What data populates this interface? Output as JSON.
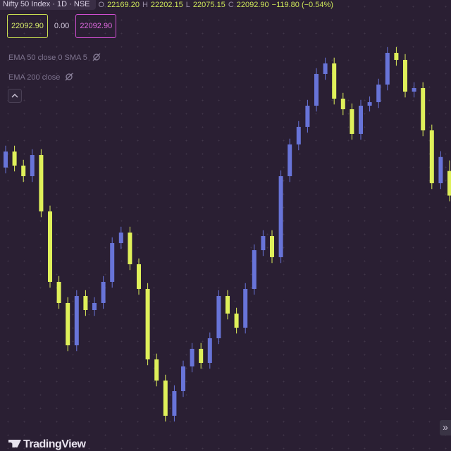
{
  "header": {
    "symbol": "Nifty 50 Index · 1D · NSE",
    "o_label": "O",
    "o": "22169.20",
    "h_label": "H",
    "h": "22202.15",
    "l_label": "L",
    "l": "22075.15",
    "c_label": "C",
    "c": "22092.90",
    "change": "−119.80 (−0.54%)",
    "sell_price": "22092.90",
    "spread": "0.00",
    "buy_price": "22092.90",
    "indicators": [
      "EMA 50 close 0 SMA 5",
      "EMA 200 close"
    ],
    "logo": "TradingView",
    "more_button": "»"
  },
  "chart_data": {
    "type": "candlestick",
    "ylim": [
      21300,
      22700
    ],
    "up_color": "#6874d8",
    "down_color": "#dff05a",
    "open": [
      22180,
      22229.7,
      22185.9,
      22153.1,
      22218.7,
      22043.7,
      21825,
      21759.4,
      21628.1,
      21781.2,
      21737.5,
      21759.4,
      21825,
      21945.3,
      21978.1,
      21879.7,
      21803.1,
      21584.4,
      21518.7,
      21409.4,
      21485.9,
      21562.5,
      21617.2,
      21573.4,
      21650,
      21781.2,
      21726.6,
      21682.8,
      21803.1,
      21923.4,
      21967.2,
      21901.6,
      22153.1,
      22251.6,
      22306.2,
      22371.9,
      22470.3,
      22503.1,
      22393.7,
      22360.9,
      22284.4,
      22371.9,
      22382.8,
      22437.5,
      22535.9,
      22514.1,
      22415.6,
      22426.6,
      22295.3,
      22131.2,
      22169.2
    ],
    "high": [
      22247.7,
      22247.7,
      22203.9,
      22236.7,
      22236.7,
      22061.7,
      21843,
      21777.4,
      21799.2,
      21799.2,
      21777.4,
      21843,
      21963.3,
      21996.1,
      21996.1,
      21897.7,
      21821.1,
      21602.4,
      21536.7,
      21503.9,
      21580.5,
      21635.2,
      21635.2,
      21668,
      21799.2,
      21799.2,
      21744.6,
      21821.1,
      21941.4,
      21985.2,
      21985.2,
      22171.1,
      22269.6,
      22324.2,
      22389.9,
      22488.3,
      22521.1,
      22521.1,
      22411.7,
      22378.9,
      22389.9,
      22400.8,
      22455.5,
      22553.9,
      22553.9,
      22532.1,
      22444.6,
      22444.6,
      22313.3,
      22230.7,
      22202.15
    ],
    "low": [
      22162,
      22167.9,
      22135.1,
      22135.1,
      22025.7,
      21807,
      21741.4,
      21610.1,
      21610.1,
      21719.5,
      21719.5,
      21741.4,
      21807,
      21927.3,
      21861.7,
      21785.1,
      21566.4,
      21500.7,
      21391.4,
      21391.4,
      21467.9,
      21544.5,
      21555.4,
      21555.4,
      21632,
      21708.6,
      21664.8,
      21664.8,
      21785.1,
      21905.4,
      21883.6,
      21883.6,
      22135.1,
      22233.6,
      22288.2,
      22353.9,
      22452.3,
      22375.7,
      22342.9,
      22266.4,
      22266.4,
      22353.9,
      22364.8,
      22419.5,
      22496.1,
      22397.6,
      22397.6,
      22277.3,
      22113.2,
      22113.2,
      22075.15
    ],
    "close": [
      22229.7,
      22185.9,
      22153.1,
      22218.7,
      22043.7,
      21825,
      21759.4,
      21628.1,
      21781.2,
      21737.5,
      21759.4,
      21825,
      21945.3,
      21978.1,
      21879.7,
      21803.1,
      21584.4,
      21518.7,
      21409.4,
      21485.9,
      21562.5,
      21617.2,
      21573.4,
      21650,
      21781.2,
      21726.6,
      21682.8,
      21803.1,
      21923.4,
      21967.2,
      21901.6,
      22153.1,
      22251.6,
      22306.2,
      22371.9,
      22470.3,
      22503.1,
      22393.7,
      22360.9,
      22284.4,
      22371.9,
      22382.8,
      22437.5,
      22535.9,
      22514.1,
      22415.6,
      22426.6,
      22295.3,
      22131.2,
      22212.7,
      22092.9
    ]
  }
}
